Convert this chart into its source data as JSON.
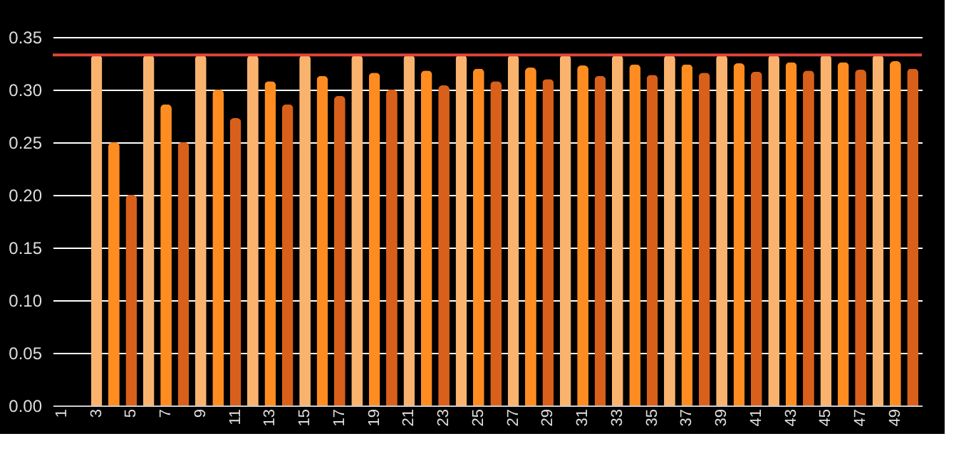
{
  "chart_data": {
    "type": "bar",
    "categories": [
      "1",
      null,
      "3",
      null,
      "5",
      null,
      "7",
      null,
      "9",
      null,
      "11",
      null,
      "13",
      null,
      "15",
      null,
      "17",
      null,
      "19",
      null,
      "21",
      null,
      "23",
      null,
      "25",
      null,
      "27",
      null,
      "29",
      null,
      "31",
      null,
      "33",
      null,
      "35",
      null,
      "37",
      null,
      "39",
      null,
      "41",
      null,
      "43",
      null,
      "45",
      null,
      "47",
      null,
      "49",
      null
    ],
    "values": [
      null,
      null,
      0.333,
      0.25,
      0.2,
      0.333,
      0.286,
      0.25,
      0.333,
      0.3,
      0.273,
      0.333,
      0.308,
      0.286,
      0.333,
      0.313,
      0.294,
      0.333,
      0.316,
      0.3,
      0.333,
      0.318,
      0.304,
      0.333,
      0.32,
      0.308,
      0.333,
      0.321,
      0.31,
      0.333,
      0.323,
      0.313,
      0.333,
      0.324,
      0.314,
      0.333,
      0.324,
      0.316,
      0.333,
      0.325,
      0.317,
      0.333,
      0.326,
      0.318,
      0.333,
      0.326,
      0.319,
      0.333,
      0.327,
      0.32
    ],
    "colors": [
      null,
      null,
      "#f9b36e",
      "#fe8c20",
      "#d8601a",
      "#f9b36e",
      "#fe8c20",
      "#d8601a",
      "#f9b36e",
      "#fe8c20",
      "#d8601a",
      "#f9b36e",
      "#fe8c20",
      "#d8601a",
      "#f9b36e",
      "#fe8c20",
      "#d8601a",
      "#f9b36e",
      "#fe8c20",
      "#d8601a",
      "#f9b36e",
      "#fe8c20",
      "#d8601a",
      "#f9b36e",
      "#fe8c20",
      "#d8601a",
      "#f9b36e",
      "#fe8c20",
      "#d8601a",
      "#f9b36e",
      "#fe8c20",
      "#d8601a",
      "#f9b36e",
      "#fe8c20",
      "#d8601a",
      "#f9b36e",
      "#fe8c20",
      "#d8601a",
      "#f9b36e",
      "#fe8c20",
      "#d8601a",
      "#f9b36e",
      "#fe8c20",
      "#d8601a",
      "#f9b36e",
      "#fe8c20",
      "#d8601a",
      "#f9b36e",
      "#fe8c20",
      "#d8601a"
    ],
    "ylim": [
      0,
      0.35
    ],
    "yticks": [
      {
        "value": 0,
        "label": "0.00"
      },
      {
        "value": 0.05,
        "label": "0.05"
      },
      {
        "value": 0.1,
        "label": "0.10"
      },
      {
        "value": 0.15,
        "label": "0.15"
      },
      {
        "value": 0.2,
        "label": "0.20"
      },
      {
        "value": 0.25,
        "label": "0.25"
      },
      {
        "value": 0.3,
        "label": "0.30"
      },
      {
        "value": 0.35,
        "label": "0.35"
      }
    ],
    "grid": "y",
    "ref_lines": [
      {
        "axis": "y",
        "value": 0.333,
        "color": "#e0443a"
      }
    ]
  }
}
